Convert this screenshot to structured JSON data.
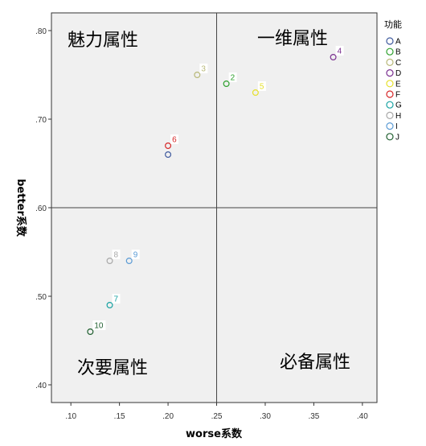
{
  "chart_data": {
    "type": "scatter",
    "xlabel": "worse系数",
    "ylabel": "better系数",
    "xlim": [
      0.08,
      0.415
    ],
    "ylim": [
      0.38,
      0.82
    ],
    "xticks": [
      0.1,
      0.15,
      0.2,
      0.25,
      0.3,
      0.35,
      0.4
    ],
    "xtick_labels": [
      ".10",
      ".15",
      ".20",
      ".25",
      ".30",
      ".35",
      ".40"
    ],
    "yticks": [
      0.4,
      0.5,
      0.6,
      0.7,
      0.8
    ],
    "ytick_labels": [
      ".40",
      ".50",
      ".60",
      ".70",
      ".80"
    ],
    "reference_lines": {
      "x": 0.25,
      "y": 0.6
    },
    "quadrant_labels": {
      "top_left": "魅力属性",
      "top_right": "一维属性",
      "bottom_left": "次要属性",
      "bottom_right": "必备属性"
    },
    "legend": {
      "title": "功能",
      "position": "right",
      "entries": [
        {
          "name": "A",
          "color": "#3f5a9e"
        },
        {
          "name": "B",
          "color": "#2ca02c"
        },
        {
          "name": "C",
          "color": "#b8b878"
        },
        {
          "name": "D",
          "color": "#7a2f8f"
        },
        {
          "name": "E",
          "color": "#e6e02a"
        },
        {
          "name": "F",
          "color": "#d62728"
        },
        {
          "name": "G",
          "color": "#17a2a2"
        },
        {
          "name": "H",
          "color": "#a8a8a8"
        },
        {
          "name": "I",
          "color": "#5b9bd5"
        },
        {
          "name": "J",
          "color": "#1e5e2e"
        }
      ]
    },
    "points": [
      {
        "group": "A",
        "x": 0.2,
        "y": 0.66,
        "label": "",
        "color": "#3f5a9e"
      },
      {
        "group": "B",
        "x": 0.26,
        "y": 0.74,
        "label": "2",
        "color": "#2ca02c"
      },
      {
        "group": "C",
        "x": 0.23,
        "y": 0.75,
        "label": "3",
        "color": "#b8b878"
      },
      {
        "group": "D",
        "x": 0.37,
        "y": 0.77,
        "label": "4",
        "color": "#7a2f8f"
      },
      {
        "group": "E",
        "x": 0.29,
        "y": 0.73,
        "label": "5",
        "color": "#e6e02a"
      },
      {
        "group": "F",
        "x": 0.2,
        "y": 0.67,
        "label": "6",
        "color": "#d62728"
      },
      {
        "group": "G",
        "x": 0.14,
        "y": 0.49,
        "label": "7",
        "color": "#17a2a2"
      },
      {
        "group": "H",
        "x": 0.14,
        "y": 0.54,
        "label": "8",
        "color": "#a8a8a8"
      },
      {
        "group": "I",
        "x": 0.16,
        "y": 0.54,
        "label": "9",
        "color": "#5b9bd5"
      },
      {
        "group": "J",
        "x": 0.12,
        "y": 0.46,
        "label": "10",
        "color": "#1e5e2e"
      }
    ]
  }
}
